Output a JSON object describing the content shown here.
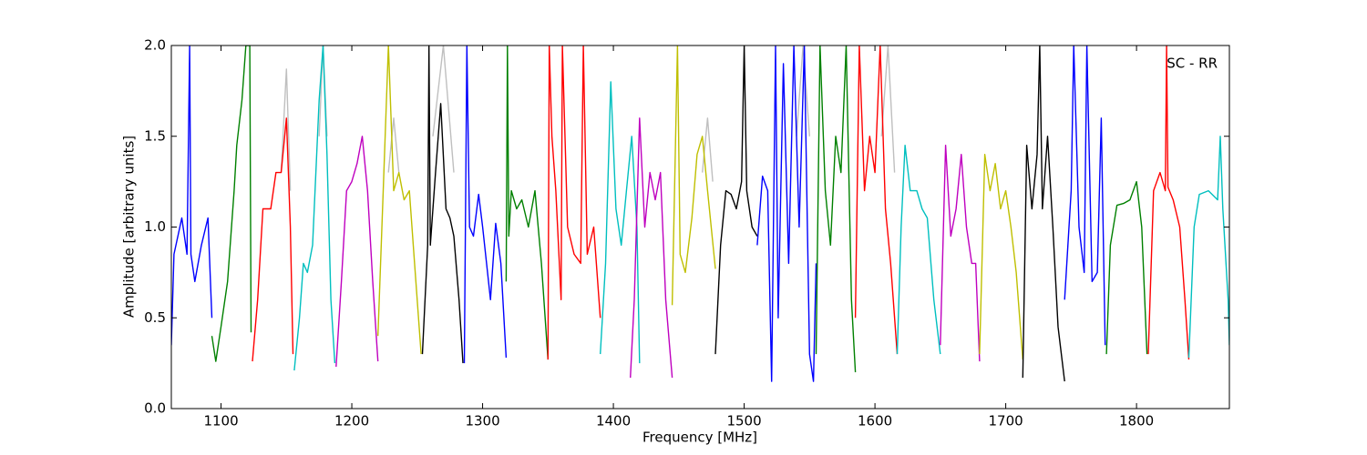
{
  "chart_data": {
    "type": "line",
    "xlabel": "Frequency [MHz]",
    "ylabel": "Amplitude [arbitrary units]",
    "annotation": "SC - RR",
    "xlim": [
      1062,
      1871
    ],
    "ylim": [
      0,
      2
    ],
    "xticks": [
      1100,
      1200,
      1300,
      1400,
      1500,
      1600,
      1700,
      1800
    ],
    "yticks": [
      {
        "value": 0,
        "label": "0.0"
      },
      {
        "value": 0.5,
        "label": "0.5"
      },
      {
        "value": 1,
        "label": "1.0"
      },
      {
        "value": 1.5,
        "label": "1.5"
      },
      {
        "value": 2,
        "label": "2.0"
      }
    ],
    "series": [
      {
        "color": "#bfbfbf",
        "x": [
          1146,
          1150,
          1153,
          1160,
          1175,
          1178,
          1181,
          1200,
          1228,
          1232,
          1236,
          1250,
          1262,
          1270,
          1278,
          1400,
          1468,
          1472,
          1476,
          1500,
          1540,
          1545,
          1550,
          1580,
          1605,
          1610,
          1615
        ],
        "values": [
          1.3,
          1.87,
          1.2,
          null,
          1.5,
          2.0,
          1.5,
          null,
          1.3,
          1.6,
          1.3,
          null,
          1.5,
          2.0,
          1.3,
          null,
          1.3,
          1.6,
          1.25,
          null,
          1.5,
          2.0,
          1.5,
          null,
          1.5,
          2.0,
          1.3
        ]
      },
      {
        "color": "#0000ff",
        "x": [
          1062,
          1064,
          1070,
          1074,
          1076,
          1077,
          1080,
          1085,
          1090,
          1093
        ],
        "values": [
          0.35,
          0.85,
          1.05,
          0.85,
          2.0,
          0.85,
          0.7,
          0.9,
          1.05,
          0.5
        ]
      },
      {
        "color": "#008000",
        "x": [
          1093,
          1096,
          1100,
          1105,
          1110,
          1112,
          1116,
          1119,
          1122,
          1123
        ],
        "values": [
          0.4,
          0.26,
          0.45,
          0.7,
          1.2,
          1.45,
          1.7,
          2.0,
          2.0,
          0.42
        ]
      },
      {
        "color": "#ff0000",
        "x": [
          1124,
          1128,
          1132,
          1138,
          1142,
          1146,
          1150,
          1153,
          1155
        ],
        "values": [
          0.26,
          0.6,
          1.1,
          1.1,
          1.3,
          1.3,
          1.6,
          1.0,
          0.3
        ]
      },
      {
        "color": "#00bfbf",
        "x": [
          1156,
          1160,
          1163,
          1166,
          1170,
          1175,
          1178,
          1181,
          1184,
          1187
        ],
        "values": [
          0.21,
          0.5,
          0.8,
          0.75,
          0.9,
          1.7,
          2.0,
          1.4,
          0.6,
          0.25
        ]
      },
      {
        "color": "#bf00bf",
        "x": [
          1188,
          1192,
          1196,
          1200,
          1204,
          1208,
          1212,
          1216,
          1220
        ],
        "values": [
          0.23,
          0.7,
          1.2,
          1.25,
          1.35,
          1.5,
          1.2,
          0.7,
          0.26
        ]
      },
      {
        "color": "#bfbf00",
        "x": [
          1220,
          1224,
          1228,
          1232,
          1236,
          1240,
          1244,
          1248,
          1253
        ],
        "values": [
          0.4,
          1.2,
          2.0,
          1.2,
          1.3,
          1.15,
          1.2,
          0.8,
          0.3
        ]
      },
      {
        "color": "#000000",
        "x": [
          1254,
          1258,
          1259,
          1260,
          1264,
          1268,
          1272,
          1275,
          1278,
          1282,
          1285
        ],
        "values": [
          0.3,
          0.9,
          2.0,
          0.9,
          1.3,
          1.68,
          1.1,
          1.05,
          0.95,
          0.6,
          0.25
        ]
      },
      {
        "color": "#0000ff",
        "x": [
          1286,
          1288,
          1290,
          1293,
          1297,
          1300,
          1303,
          1306,
          1310,
          1314,
          1318
        ],
        "values": [
          0.25,
          2.0,
          1.0,
          0.95,
          1.18,
          1.0,
          0.8,
          0.6,
          1.02,
          0.8,
          0.28
        ]
      },
      {
        "color": "#008000",
        "x": [
          1318,
          1319,
          1320,
          1322,
          1326,
          1330,
          1335,
          1340,
          1345,
          1350
        ],
        "values": [
          0.7,
          2.0,
          0.95,
          1.2,
          1.1,
          1.15,
          1.0,
          1.2,
          0.8,
          0.27
        ]
      },
      {
        "color": "#ff0000",
        "x": [
          1350,
          1351,
          1353,
          1356,
          1360,
          1361,
          1365,
          1370,
          1375,
          1377,
          1380,
          1385,
          1390
        ],
        "values": [
          0.27,
          2.0,
          1.5,
          1.2,
          0.6,
          2.0,
          1.0,
          0.85,
          0.8,
          2.0,
          0.85,
          1.0,
          0.5
        ]
      },
      {
        "color": "#00bfbf",
        "x": [
          1390,
          1394,
          1398,
          1402,
          1406,
          1410,
          1414,
          1418,
          1420
        ],
        "values": [
          0.3,
          0.8,
          1.8,
          1.1,
          0.9,
          1.2,
          1.5,
          1.0,
          0.25
        ]
      },
      {
        "color": "#bf00bf",
        "x": [
          1413,
          1416,
          1420,
          1424,
          1428,
          1432,
          1436,
          1440,
          1445
        ],
        "values": [
          0.17,
          0.6,
          1.6,
          1.0,
          1.3,
          1.15,
          1.3,
          0.6,
          0.17
        ]
      },
      {
        "color": "#bfbf00",
        "x": [
          1445,
          1449,
          1451,
          1455,
          1460,
          1464,
          1468,
          1472,
          1478
        ],
        "values": [
          0.57,
          2.0,
          0.85,
          0.75,
          1.05,
          1.4,
          1.5,
          1.2,
          0.77
        ]
      },
      {
        "color": "#000000",
        "x": [
          1478,
          1482,
          1486,
          1490,
          1494,
          1498,
          1500,
          1502,
          1506,
          1510
        ],
        "values": [
          0.3,
          0.9,
          1.2,
          1.18,
          1.1,
          1.25,
          2.0,
          1.2,
          1.0,
          0.95
        ]
      },
      {
        "color": "#0000ff",
        "x": [
          1510,
          1514,
          1518,
          1521,
          1524,
          1526,
          1530,
          1534,
          1538,
          1542,
          1546,
          1550,
          1553,
          1555
        ],
        "values": [
          0.9,
          1.28,
          1.2,
          0.15,
          2.0,
          0.5,
          1.9,
          0.8,
          2.0,
          1.0,
          2.0,
          0.3,
          0.15,
          0.8
        ]
      },
      {
        "color": "#008000",
        "x": [
          1555,
          1558,
          1562,
          1566,
          1570,
          1574,
          1578,
          1582,
          1585
        ],
        "values": [
          0.3,
          2.0,
          1.2,
          0.9,
          1.5,
          1.3,
          2.0,
          0.6,
          0.2
        ]
      },
      {
        "color": "#ff0000",
        "x": [
          1585,
          1588,
          1592,
          1596,
          1600,
          1604,
          1608,
          1612,
          1617
        ],
        "values": [
          0.5,
          2.0,
          1.2,
          1.5,
          1.3,
          2.0,
          1.1,
          0.8,
          0.3
        ]
      },
      {
        "color": "#00bfbf",
        "x": [
          1617,
          1620,
          1623,
          1627,
          1632,
          1636,
          1640,
          1645,
          1650
        ],
        "values": [
          0.3,
          1.0,
          1.45,
          1.2,
          1.2,
          1.1,
          1.05,
          0.6,
          0.3
        ]
      },
      {
        "color": "#bf00bf",
        "x": [
          1650,
          1654,
          1658,
          1662,
          1666,
          1670,
          1674,
          1677,
          1680
        ],
        "values": [
          0.35,
          1.45,
          0.95,
          1.1,
          1.4,
          1.0,
          0.8,
          0.8,
          0.26
        ]
      },
      {
        "color": "#bfbf00",
        "x": [
          1680,
          1684,
          1688,
          1692,
          1696,
          1700,
          1704,
          1708,
          1713
        ],
        "values": [
          0.3,
          1.4,
          1.2,
          1.35,
          1.1,
          1.2,
          1.0,
          0.75,
          0.27
        ]
      },
      {
        "color": "#000000",
        "x": [
          1713,
          1716,
          1720,
          1724,
          1726,
          1728,
          1732,
          1736,
          1740,
          1745
        ],
        "values": [
          0.17,
          1.45,
          1.1,
          1.4,
          2.0,
          1.1,
          1.5,
          1.0,
          0.45,
          0.15
        ]
      },
      {
        "color": "#0000ff",
        "x": [
          1745,
          1750,
          1752,
          1756,
          1760,
          1762,
          1766,
          1770,
          1773,
          1776
        ],
        "values": [
          0.6,
          1.2,
          2.0,
          1.0,
          0.75,
          2.0,
          0.7,
          0.75,
          1.6,
          0.35
        ]
      },
      {
        "color": "#008000",
        "x": [
          1777,
          1780,
          1785,
          1790,
          1795,
          1800,
          1804,
          1808
        ],
        "values": [
          0.3,
          0.9,
          1.12,
          1.13,
          1.15,
          1.25,
          1.0,
          0.3
        ]
      },
      {
        "color": "#ff0000",
        "x": [
          1809,
          1813,
          1818,
          1822,
          1823,
          1824,
          1828,
          1833,
          1837,
          1840
        ],
        "values": [
          0.3,
          1.2,
          1.3,
          1.2,
          2.0,
          1.22,
          1.15,
          1.0,
          0.6,
          0.27
        ]
      },
      {
        "color": "#00bfbf",
        "x": [
          1840,
          1844,
          1848,
          1855,
          1862,
          1864,
          1866,
          1870,
          1871
        ],
        "values": [
          0.28,
          1.0,
          1.18,
          1.2,
          1.15,
          1.5,
          1.1,
          0.6,
          0.35
        ]
      }
    ]
  }
}
